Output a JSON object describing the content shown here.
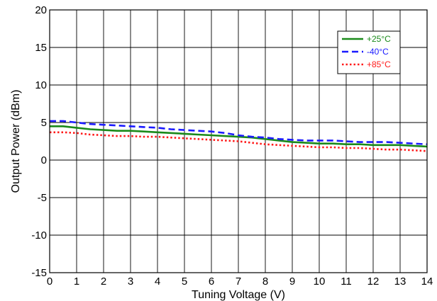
{
  "chart_data": {
    "type": "line",
    "title": "",
    "xlabel": "Tuning Voltage (V)",
    "ylabel": "Output Power (dBm)",
    "xlim": [
      0,
      14
    ],
    "ylim": [
      -15,
      20
    ],
    "x_ticks": [
      0,
      1,
      2,
      3,
      4,
      5,
      6,
      7,
      8,
      9,
      10,
      11,
      12,
      13,
      14
    ],
    "y_ticks": [
      -15,
      -10,
      -5,
      0,
      5,
      10,
      15,
      20
    ],
    "x_tick_labels": [
      "0",
      "1",
      "2",
      "3",
      "4",
      "5",
      "6",
      "7",
      "8",
      "9",
      "10",
      "11",
      "12",
      "13",
      "14"
    ],
    "y_tick_labels": [
      "-15",
      "-10",
      "-5",
      "0",
      "5",
      "10",
      "15",
      "20"
    ],
    "grid": true,
    "legend_position": "top-right",
    "x": [
      0,
      0.5,
      1,
      1.5,
      2,
      2.5,
      3,
      3.5,
      4,
      4.5,
      5,
      5.5,
      6,
      6.5,
      7,
      7.5,
      8,
      8.5,
      9,
      9.5,
      10,
      10.5,
      11,
      11.5,
      12,
      12.5,
      13,
      13.5,
      14
    ],
    "series": [
      {
        "name": "+25°C",
        "color": "#1a8a1a",
        "dash": "solid",
        "values": [
          4.5,
          4.5,
          4.3,
          4.1,
          4.0,
          3.9,
          3.9,
          3.8,
          3.7,
          3.6,
          3.5,
          3.4,
          3.3,
          3.2,
          3.1,
          3.0,
          2.8,
          2.6,
          2.4,
          2.3,
          2.2,
          2.2,
          2.1,
          2.1,
          2.0,
          2.0,
          2.0,
          1.9,
          1.8
        ]
      },
      {
        "name": "-40°C",
        "color": "#1a1aff",
        "dash": "dashed",
        "values": [
          5.2,
          5.2,
          5.0,
          4.8,
          4.7,
          4.6,
          4.5,
          4.4,
          4.3,
          4.1,
          4.0,
          3.9,
          3.8,
          3.6,
          3.3,
          3.1,
          3.0,
          2.8,
          2.7,
          2.6,
          2.6,
          2.6,
          2.5,
          2.4,
          2.4,
          2.4,
          2.3,
          2.2,
          2.1
        ]
      },
      {
        "name": "+85°C",
        "color": "#ff1a1a",
        "dash": "dotted",
        "values": [
          3.7,
          3.7,
          3.6,
          3.4,
          3.3,
          3.2,
          3.2,
          3.1,
          3.1,
          3.0,
          2.9,
          2.8,
          2.7,
          2.6,
          2.5,
          2.3,
          2.1,
          2.0,
          1.9,
          1.8,
          1.7,
          1.7,
          1.6,
          1.6,
          1.5,
          1.4,
          1.4,
          1.3,
          1.2
        ]
      }
    ]
  }
}
